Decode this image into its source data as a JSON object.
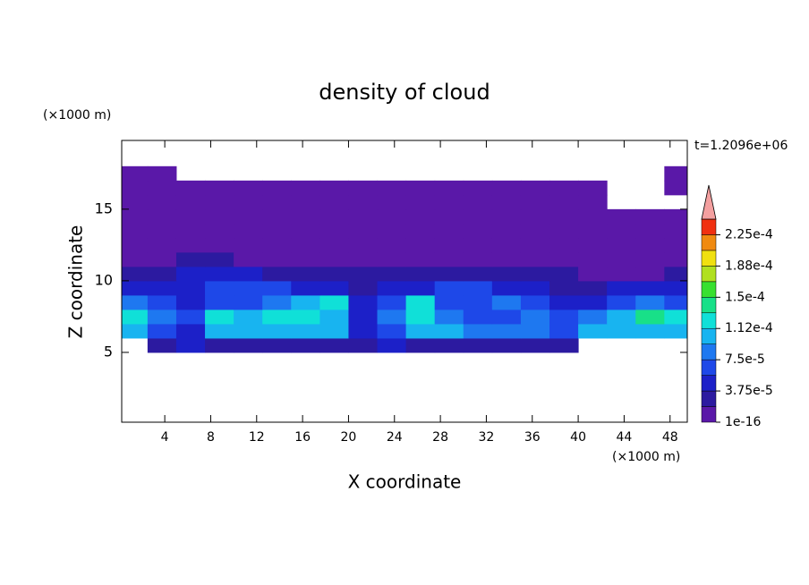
{
  "chart_data": {
    "type": "contour",
    "title": "density of cloud",
    "xlabel": "X coordinate",
    "ylabel": "Z coordinate",
    "xunit": "(×1000 m)",
    "yunit": "(×1000 m)",
    "annotation": "t=1.2096e+06",
    "xlim": [
      0.25,
      49.5
    ],
    "ylim": [
      0.125,
      19.8
    ],
    "xticks": [
      4,
      8,
      12,
      16,
      20,
      24,
      28,
      32,
      36,
      40,
      44,
      48
    ],
    "yticks": [
      5,
      10,
      15
    ],
    "x_edges": [
      0,
      2.5,
      5,
      7.5,
      10,
      12.5,
      15,
      17.5,
      20,
      22.5,
      25,
      27.5,
      30,
      32.5,
      35,
      37.5,
      40,
      42.5,
      45,
      47.5,
      50
    ],
    "z_edges": [
      5,
      6,
      7,
      8,
      9,
      10,
      11,
      12,
      13,
      14,
      15,
      16,
      17,
      18
    ],
    "values": [
      [
        null,
        2.8e-05,
        4.7e-05,
        2.8e-05,
        2.8e-05,
        2.8e-05,
        2.8e-05,
        2.8e-05,
        2.8e-05,
        4.7e-05,
        2.8e-05,
        2.8e-05,
        2.8e-05,
        2.8e-05,
        2.8e-05,
        2.8e-05,
        null,
        null,
        null,
        null
      ],
      [
        0.000103,
        6.5e-05,
        4.7e-05,
        0.000103,
        0.000103,
        0.000103,
        0.000103,
        0.000103,
        4.7e-05,
        6.5e-05,
        0.000103,
        0.000103,
        8.4e-05,
        8.4e-05,
        8.4e-05,
        6.5e-05,
        0.000103,
        0.000103,
        0.000103,
        0.000103
      ],
      [
        0.000122,
        8.4e-05,
        6.5e-05,
        0.000122,
        0.000103,
        0.000122,
        0.000122,
        0.000103,
        4.7e-05,
        8.4e-05,
        0.000122,
        8.4e-05,
        6.5e-05,
        6.5e-05,
        8.4e-05,
        6.5e-05,
        8.4e-05,
        0.000103,
        0.00014,
        0.000122
      ],
      [
        8.4e-05,
        6.5e-05,
        4.7e-05,
        6.5e-05,
        6.5e-05,
        8.4e-05,
        0.000103,
        0.000122,
        4.7e-05,
        6.5e-05,
        0.000122,
        6.5e-05,
        6.5e-05,
        8.4e-05,
        6.5e-05,
        4.7e-05,
        4.7e-05,
        6.5e-05,
        8.4e-05,
        6.5e-05
      ],
      [
        4.7e-05,
        4.7e-05,
        4.7e-05,
        6.5e-05,
        6.5e-05,
        6.5e-05,
        4.7e-05,
        4.7e-05,
        2.8e-05,
        4.7e-05,
        4.7e-05,
        6.5e-05,
        6.5e-05,
        4.7e-05,
        4.7e-05,
        2.8e-05,
        2.8e-05,
        4.7e-05,
        4.7e-05,
        4.7e-05
      ],
      [
        2.8e-05,
        2.8e-05,
        4.7e-05,
        4.7e-05,
        4.7e-05,
        2.8e-05,
        2.8e-05,
        2.8e-05,
        2.8e-05,
        2.8e-05,
        2.8e-05,
        2.8e-05,
        2.8e-05,
        2.8e-05,
        2.8e-05,
        2.8e-05,
        1e-05,
        1e-05,
        1e-05,
        2.8e-05
      ],
      [
        1e-05,
        1e-05,
        2.8e-05,
        2.8e-05,
        1e-05,
        1e-05,
        1e-05,
        1e-05,
        1e-05,
        1e-05,
        1e-05,
        1e-05,
        1e-05,
        1e-05,
        1e-05,
        1e-05,
        1e-05,
        1e-05,
        1e-05,
        1e-05
      ],
      [
        1e-05,
        1e-05,
        1e-05,
        1e-05,
        1e-05,
        1e-05,
        1e-05,
        1e-05,
        1e-05,
        1e-05,
        1e-05,
        1e-05,
        1e-05,
        1e-05,
        1e-05,
        1e-05,
        1e-05,
        1e-05,
        1e-05,
        1e-05
      ],
      [
        1e-05,
        1e-05,
        1e-05,
        1e-05,
        1e-05,
        1e-05,
        1e-05,
        1e-05,
        1e-05,
        1e-05,
        1e-05,
        1e-05,
        1e-05,
        1e-05,
        1e-05,
        1e-05,
        1e-05,
        1e-05,
        1e-05,
        1e-05
      ],
      [
        1e-05,
        1e-05,
        1e-05,
        1e-05,
        1e-05,
        1e-05,
        1e-05,
        1e-05,
        1e-05,
        1e-05,
        1e-05,
        1e-05,
        1e-05,
        1e-05,
        1e-05,
        1e-05,
        1e-05,
        1e-05,
        1e-05,
        1e-05
      ],
      [
        1e-05,
        1e-05,
        1e-05,
        1e-05,
        1e-05,
        1e-05,
        1e-05,
        1e-05,
        1e-05,
        1e-05,
        1e-05,
        1e-05,
        1e-05,
        1e-05,
        1e-05,
        1e-05,
        1e-05,
        null,
        null,
        null
      ],
      [
        1e-05,
        1e-05,
        1e-05,
        1e-05,
        1e-05,
        1e-05,
        1e-05,
        1e-05,
        1e-05,
        1e-05,
        1e-05,
        1e-05,
        1e-05,
        1e-05,
        1e-05,
        1e-05,
        1e-05,
        null,
        null,
        1e-05
      ],
      [
        1e-05,
        1e-05,
        null,
        null,
        null,
        null,
        null,
        null,
        null,
        null,
        null,
        null,
        null,
        null,
        null,
        null,
        null,
        null,
        null,
        1e-05
      ]
    ],
    "colorbar": {
      "levels": [
        1e-16,
        1.875e-05,
        3.75e-05,
        5.625e-05,
        7.5e-05,
        9.375e-05,
        0.0001125,
        0.00013125,
        0.00015,
        0.00016875,
        0.0001875,
        0.00020625,
        0.000225,
        0.00024375
      ],
      "colors": [
        "#5a18a8",
        "#2c1aa0",
        "#1c20c8",
        "#1e48e8",
        "#1e78f0",
        "#18b4f0",
        "#10e0d8",
        "#18e088",
        "#38e030",
        "#b0e020",
        "#f0e010",
        "#f08a10",
        "#f03010"
      ],
      "extend_color": "#f4a0a0",
      "ticks": [
        {
          "value": 1e-16,
          "label": "1e-16"
        },
        {
          "value": 3.75e-05,
          "label": "3.75e-5"
        },
        {
          "value": 7.5e-05,
          "label": "7.5e-5"
        },
        {
          "value": 0.0001125,
          "label": "1.12e-4"
        },
        {
          "value": 0.00015,
          "label": "1.5e-4"
        },
        {
          "value": 0.0001875,
          "label": "1.88e-4"
        },
        {
          "value": 0.000225,
          "label": "2.25e-4"
        }
      ]
    }
  }
}
